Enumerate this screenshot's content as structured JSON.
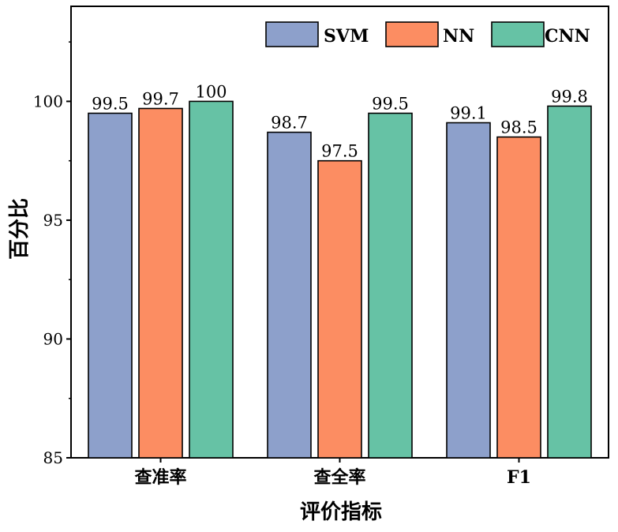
{
  "chart_data": {
    "type": "bar",
    "xlabel": "评价指标",
    "ylabel": "百分比",
    "categories": [
      "查准率",
      "查全率",
      "F1"
    ],
    "series": [
      {
        "name": "SVM",
        "color": "#8DA0CB",
        "values": [
          99.5,
          98.7,
          99.1
        ]
      },
      {
        "name": "NN",
        "color": "#FC8D62",
        "values": [
          99.7,
          97.5,
          98.5
        ]
      },
      {
        "name": "CNN",
        "color": "#66C2A5",
        "values": [
          100,
          99.5,
          99.8
        ]
      }
    ],
    "data_labels": [
      [
        "99.5",
        "98.7",
        "99.1"
      ],
      [
        "99.7",
        "97.5",
        "98.5"
      ],
      [
        "100",
        "99.5",
        "99.8"
      ]
    ],
    "ylim": [
      85,
      104
    ],
    "yticks": [
      85,
      90,
      95,
      100
    ],
    "legend": "top-right",
    "grid": false
  }
}
